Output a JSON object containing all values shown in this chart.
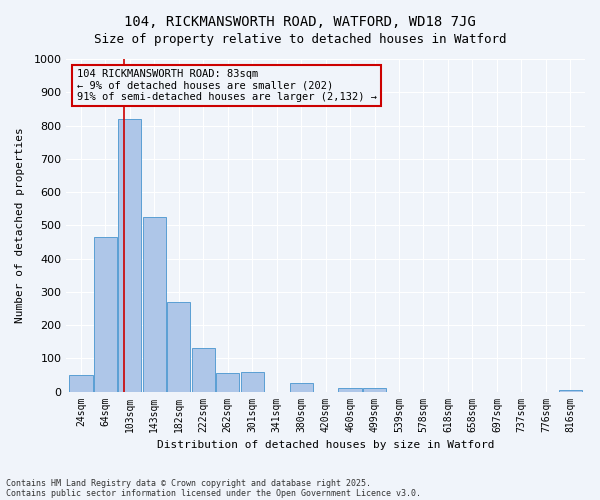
{
  "title1": "104, RICKMANSWORTH ROAD, WATFORD, WD18 7JG",
  "title2": "Size of property relative to detached houses in Watford",
  "xlabel": "Distribution of detached houses by size in Watford",
  "ylabel": "Number of detached properties",
  "categories": [
    "24sqm",
    "64sqm",
    "103sqm",
    "143sqm",
    "182sqm",
    "222sqm",
    "262sqm",
    "301sqm",
    "341sqm",
    "380sqm",
    "420sqm",
    "460sqm",
    "499sqm",
    "539sqm",
    "578sqm",
    "618sqm",
    "658sqm",
    "697sqm",
    "737sqm",
    "776sqm",
    "816sqm"
  ],
  "values": [
    50,
    465,
    820,
    525,
    270,
    130,
    55,
    60,
    0,
    25,
    0,
    10,
    10,
    0,
    0,
    0,
    0,
    0,
    0,
    0,
    5
  ],
  "bar_color": "#aec6e8",
  "bar_edge_color": "#5a9fd4",
  "vline_x_index": 2.0,
  "vline_color": "#cc0000",
  "annotation_text": "104 RICKMANSWORTH ROAD: 83sqm\n← 9% of detached houses are smaller (202)\n91% of semi-detached houses are larger (2,132) →",
  "annotation_box_color": "#cc0000",
  "ylim": [
    0,
    1000
  ],
  "yticks": [
    0,
    100,
    200,
    300,
    400,
    500,
    600,
    700,
    800,
    900,
    1000
  ],
  "footer1": "Contains HM Land Registry data © Crown copyright and database right 2025.",
  "footer2": "Contains public sector information licensed under the Open Government Licence v3.0.",
  "bg_color": "#f0f4fa",
  "grid_color": "#ffffff"
}
